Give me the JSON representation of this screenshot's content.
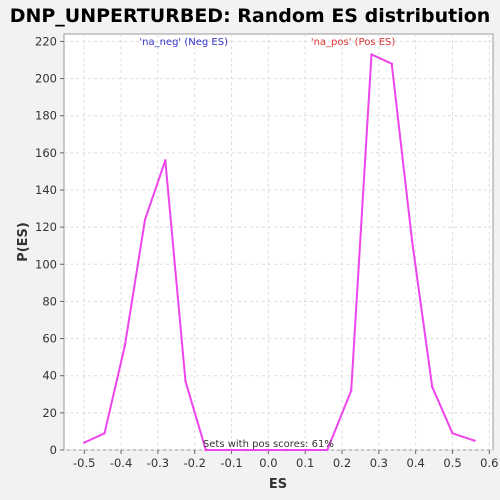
{
  "chart_data": {
    "type": "line",
    "title": "DNP_UNPERTURBED: Random ES distribution",
    "xlabel": "ES",
    "ylabel": "P(ES)",
    "xlim": [
      -0.555,
      0.61
    ],
    "ylim": [
      0,
      224
    ],
    "x_ticks": [
      -0.5,
      -0.4,
      -0.3,
      -0.2,
      -0.1,
      0.0,
      0.1,
      0.2,
      0.3,
      0.4,
      0.5,
      0.6
    ],
    "x_tick_labels": [
      "-0.5",
      "-0.4",
      "-0.3",
      "-0.2",
      "-0.1",
      "0.0",
      "0.1",
      "0.2",
      "0.3",
      "0.4",
      "0.5",
      "0.6"
    ],
    "y_ticks": [
      0,
      20,
      40,
      60,
      80,
      100,
      120,
      140,
      160,
      180,
      200,
      220
    ],
    "y_tick_labels": [
      "0",
      "20",
      "40",
      "60",
      "80",
      "100",
      "120",
      "140",
      "160",
      "180",
      "200",
      "220"
    ],
    "grid": true,
    "series": [
      {
        "name": "Random ES",
        "color": "#ee44ee",
        "x": [
          -0.5,
          -0.445,
          -0.39,
          -0.335,
          -0.28,
          -0.225,
          -0.17,
          -0.115,
          -0.06,
          -0.005,
          0.05,
          0.105,
          0.16,
          0.225,
          0.28,
          0.335,
          0.39,
          0.445,
          0.5,
          0.56
        ],
        "y": [
          4,
          9,
          56,
          124,
          156,
          37,
          0,
          0,
          0,
          0,
          0,
          0,
          0,
          32,
          213,
          208,
          113,
          34,
          9,
          5
        ]
      }
    ],
    "annotations": [
      {
        "text": "'na_neg' (Neg ES)",
        "x": -0.23,
        "y": 218,
        "color": "#3333cc"
      },
      {
        "text": "'na_pos' (Pos ES)",
        "x": 0.23,
        "y": 218,
        "color": "#dd3333"
      },
      {
        "text": "Sets with pos scores: 61%",
        "x": 0.0,
        "y": 1.5,
        "color": "#333333"
      }
    ]
  }
}
